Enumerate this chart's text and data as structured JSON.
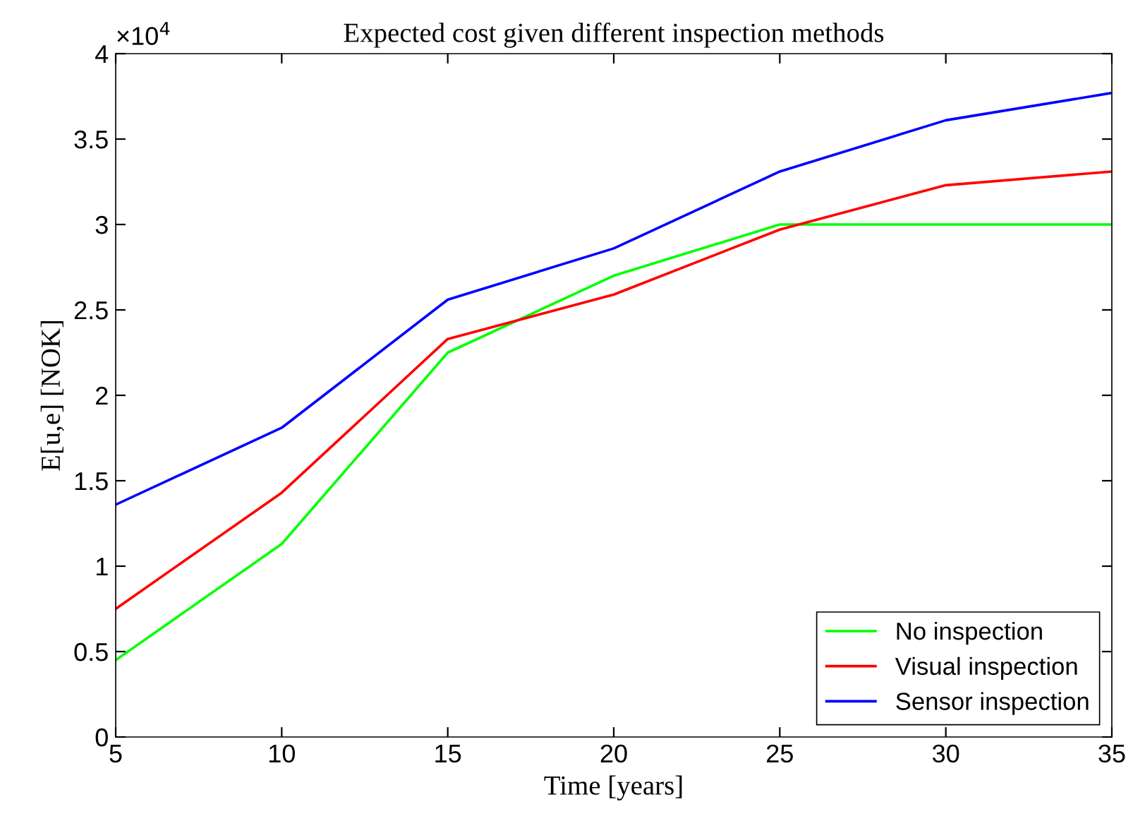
{
  "chart_data": {
    "type": "line",
    "title": "Expected cost given different inspection methods",
    "xlabel": "Time [years]",
    "ylabel": "E[u,e] [NOK]",
    "x": [
      5,
      10,
      15,
      20,
      25,
      30,
      35
    ],
    "series": [
      {
        "name": "No inspection",
        "color": "#00ff00",
        "values": [
          0.45,
          1.13,
          2.25,
          2.7,
          3.0,
          3.0,
          3.0
        ]
      },
      {
        "name": "Visual inspection",
        "color": "#ff0000",
        "values": [
          0.75,
          1.43,
          2.33,
          2.59,
          2.97,
          3.23,
          3.31
        ]
      },
      {
        "name": "Sensor inspection",
        "color": "#0000ff",
        "values": [
          1.36,
          1.81,
          2.56,
          2.86,
          3.31,
          3.61,
          3.77
        ]
      }
    ],
    "xlim": [
      5,
      35
    ],
    "xticks": [
      5,
      10,
      15,
      20,
      25,
      30,
      35
    ],
    "ylim": [
      0,
      4
    ],
    "yticks": [
      0,
      0.5,
      1,
      1.5,
      2,
      2.5,
      3,
      3.5,
      4
    ],
    "annotations": [
      "×10$^{4}$"
    ],
    "grid": false,
    "legend": "bottom right",
    "marker": "none",
    "line_style": "solid"
  }
}
